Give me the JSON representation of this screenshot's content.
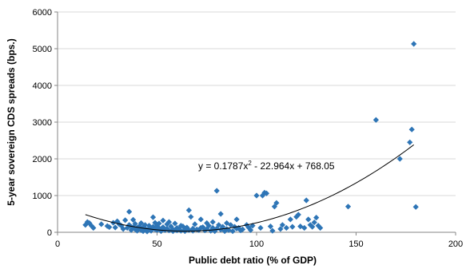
{
  "chart_data": {
    "type": "scatter",
    "xlabel": "Public debt ratio (% of GDP)",
    "ylabel": "5-year sovereign CDS spreads (bps.)",
    "xlim": [
      0,
      200
    ],
    "ylim": [
      0,
      6000
    ],
    "xticks": [
      0,
      50,
      100,
      150,
      200
    ],
    "yticks": [
      0,
      1000,
      2000,
      3000,
      4000,
      5000,
      6000
    ],
    "grid": "horizontal",
    "marker_color": "#2e75b6",
    "trendline": {
      "type": "polynomial",
      "degree": 2,
      "coefficients": [
        0.1787,
        -22.964,
        768.05
      ],
      "x_range": [
        14,
        179
      ],
      "equation": {
        "prefix": "y = 0.1787x",
        "sup": "2",
        "suffix": " - 22.964x + 768.05"
      }
    },
    "series": [
      {
        "x": [
          14,
          15,
          16,
          17,
          18,
          22,
          25,
          26,
          28,
          29,
          30,
          31,
          32,
          33,
          34,
          35,
          36,
          36,
          37,
          37,
          38,
          38,
          39,
          39,
          40,
          40,
          41,
          41,
          42,
          42,
          43,
          43,
          44,
          44,
          45,
          45,
          46,
          46,
          47,
          47,
          48,
          48,
          49,
          49,
          50,
          50,
          51,
          51,
          52,
          52,
          53,
          53,
          54,
          55,
          55,
          56,
          56,
          57,
          58,
          58,
          59,
          60,
          60,
          61,
          62,
          62,
          63,
          64,
          64,
          65,
          66,
          66,
          67,
          68,
          68,
          69,
          70,
          71,
          72,
          72,
          73,
          74,
          75,
          75,
          76,
          77,
          78,
          78,
          79,
          80,
          80,
          81,
          82,
          82,
          83,
          84,
          85,
          85,
          86,
          87,
          88,
          89,
          90,
          90,
          91,
          92,
          93,
          95,
          96,
          97,
          98,
          100,
          102,
          103,
          104,
          105,
          107,
          108,
          109,
          110,
          112,
          113,
          115,
          117,
          118,
          120,
          121,
          122,
          124,
          125,
          126,
          127,
          128,
          129,
          130,
          131,
          132,
          146,
          160,
          172,
          177,
          178,
          179,
          180
        ],
        "y": [
          200,
          280,
          250,
          180,
          120,
          220,
          170,
          140,
          260,
          130,
          300,
          220,
          180,
          90,
          330,
          120,
          560,
          200,
          150,
          60,
          340,
          130,
          230,
          80,
          120,
          40,
          160,
          90,
          250,
          60,
          140,
          30,
          200,
          100,
          70,
          20,
          180,
          90,
          120,
          40,
          410,
          150,
          260,
          80,
          60,
          170,
          240,
          110,
          90,
          30,
          320,
          140,
          60,
          220,
          100,
          50,
          280,
          160,
          80,
          30,
          240,
          120,
          50,
          90,
          180,
          40,
          160,
          70,
          30,
          130,
          60,
          600,
          420,
          100,
          40,
          220,
          80,
          60,
          350,
          120,
          140,
          50,
          250,
          90,
          180,
          40,
          280,
          120,
          30,
          1130,
          100,
          200,
          70,
          500,
          150,
          30,
          250,
          90,
          60,
          200,
          30,
          150,
          100,
          350,
          120,
          50,
          80,
          200,
          130,
          60,
          180,
          1000,
          120,
          1000,
          1080,
          1060,
          160,
          40,
          700,
          800,
          90,
          200,
          120,
          350,
          150,
          420,
          480,
          160,
          120,
          870,
          350,
          200,
          150,
          270,
          400,
          180,
          120,
          700,
          3060,
          2000,
          2450,
          2800,
          5130,
          690
        ]
      }
    ]
  }
}
